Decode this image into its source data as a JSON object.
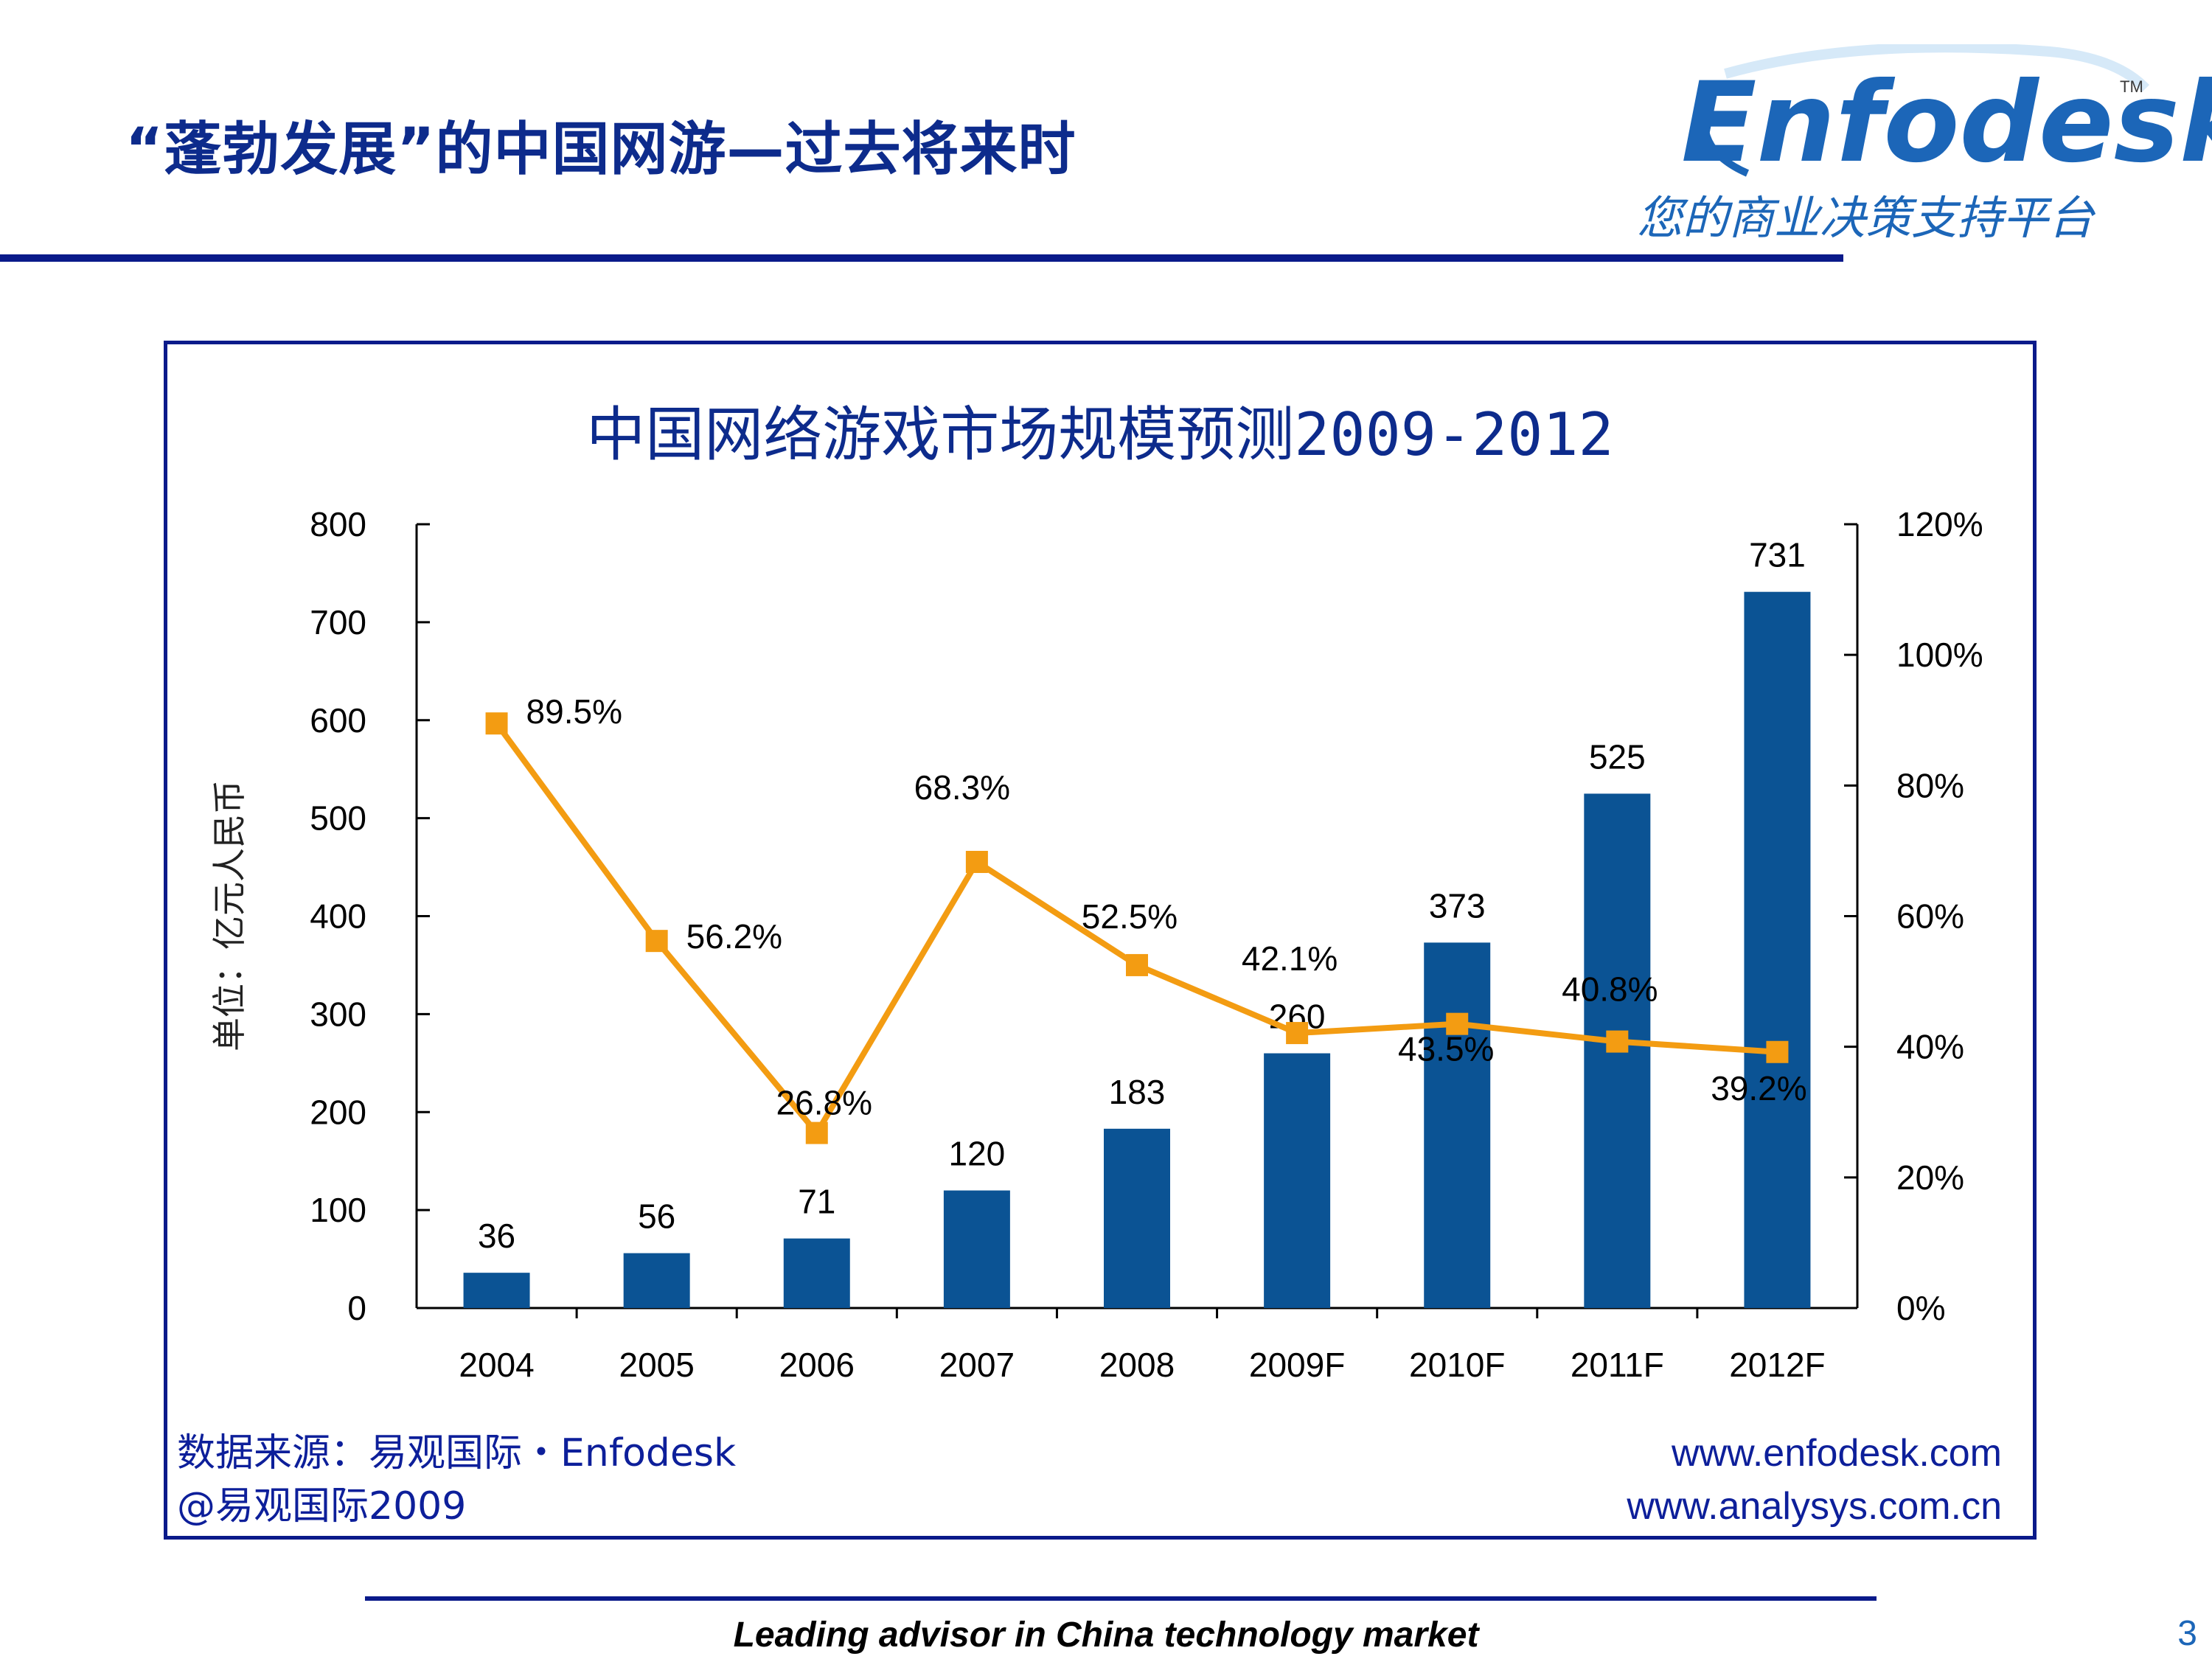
{
  "slide": {
    "title": "“蓬勃发展”的中国网游—过去将来时",
    "page_number": "3",
    "footer": "Leading advisor in China technology market"
  },
  "logo": {
    "word": "Enfodesk",
    "tm": "TM",
    "slogan": "您的商业决策支持平台"
  },
  "source": {
    "line1": "数据来源：易观国际・Enfodesk",
    "line2": "@易观国际2009",
    "url1": "www.enfodesk.com",
    "url2": "www.analysys.com.cn"
  },
  "colors": {
    "bar": "#0b5394",
    "line": "#f39c12",
    "title": "#0d2b8c",
    "frame": "#0a1a8a"
  },
  "chart_data": {
    "type": "bar",
    "title": "中国网络游戏市场规模预测2009-2012",
    "ylabel": "单位：亿元人民币",
    "categories": [
      "2004",
      "2005",
      "2006",
      "2007",
      "2008",
      "2009F",
      "2010F",
      "2011F",
      "2012F"
    ],
    "series": [
      {
        "type": "bar",
        "values": [
          36,
          56,
          71,
          120,
          183,
          260,
          373,
          525,
          731
        ],
        "labels": [
          "36",
          "56",
          "71",
          "120",
          "183",
          "260",
          "373",
          "525",
          "731"
        ]
      },
      {
        "type": "line",
        "axis": "right",
        "values": [
          89.5,
          56.2,
          26.8,
          68.3,
          52.5,
          42.1,
          43.5,
          40.8,
          39.2
        ],
        "labels": [
          "89.5%",
          "56.2%",
          "26.8%",
          "68.3%",
          "52.5%",
          "42.1%",
          "43.5%",
          "40.8%",
          "39.2%"
        ]
      }
    ],
    "ylim": [
      0,
      800
    ],
    "yticks": [
      "0",
      "100",
      "200",
      "300",
      "400",
      "500",
      "600",
      "700",
      "800"
    ],
    "y2lim": [
      0,
      120
    ],
    "y2ticks": [
      "0%",
      "20%",
      "40%",
      "60%",
      "80%",
      "100%",
      "120%"
    ],
    "legend": "none",
    "grid": false
  }
}
